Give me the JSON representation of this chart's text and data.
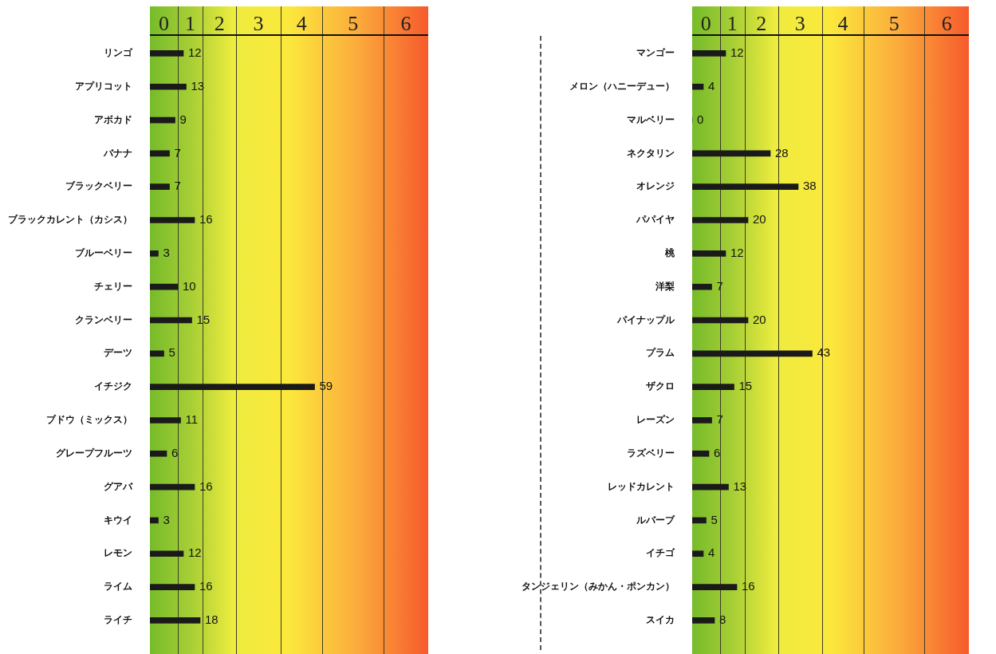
{
  "chart_data": [
    {
      "type": "bar",
      "orientation": "horizontal",
      "color": "#1a1a1a",
      "legend": false,
      "data_labels": true,
      "annotations": [
        "0",
        "1",
        "2",
        "3",
        "4",
        "5",
        "6"
      ],
      "categories": [
        "リンゴ",
        "アプリコット",
        "アボカド",
        "バナナ",
        "ブラックベリー",
        "ブラックカレント（カシス）",
        "ブルーベリー",
        "チェリー",
        "クランベリー",
        "デーツ",
        "イチジク",
        "ブドウ（ミックス）",
        "グレープフルーツ",
        "グアバ",
        "キウイ",
        "レモン",
        "ライム",
        "ライチ"
      ],
      "values": [
        12,
        13,
        9,
        7,
        7,
        16,
        3,
        10,
        15,
        5,
        59,
        11,
        6,
        16,
        3,
        12,
        16,
        18
      ]
    },
    {
      "type": "bar",
      "orientation": "horizontal",
      "color": "#1a1a1a",
      "legend": false,
      "data_labels": true,
      "annotations": [
        "0",
        "1",
        "2",
        "3",
        "4",
        "5",
        "6"
      ],
      "categories": [
        "マンゴー",
        "メロン（ハニーデュー）",
        "マルベリー",
        "ネクタリン",
        "オレンジ",
        "パパイヤ",
        "桃",
        "洋梨",
        "パイナップル",
        "プラム",
        "ザクロ",
        "レーズン",
        "ラズベリー",
        "レッドカレント",
        "ルバーブ",
        "イチゴ",
        "タンジェリン（みかん・ポンカン）",
        "スイカ"
      ],
      "values": [
        12,
        4,
        0,
        28,
        38,
        20,
        12,
        7,
        20,
        43,
        15,
        7,
        6,
        13,
        5,
        4,
        16,
        8
      ]
    }
  ]
}
